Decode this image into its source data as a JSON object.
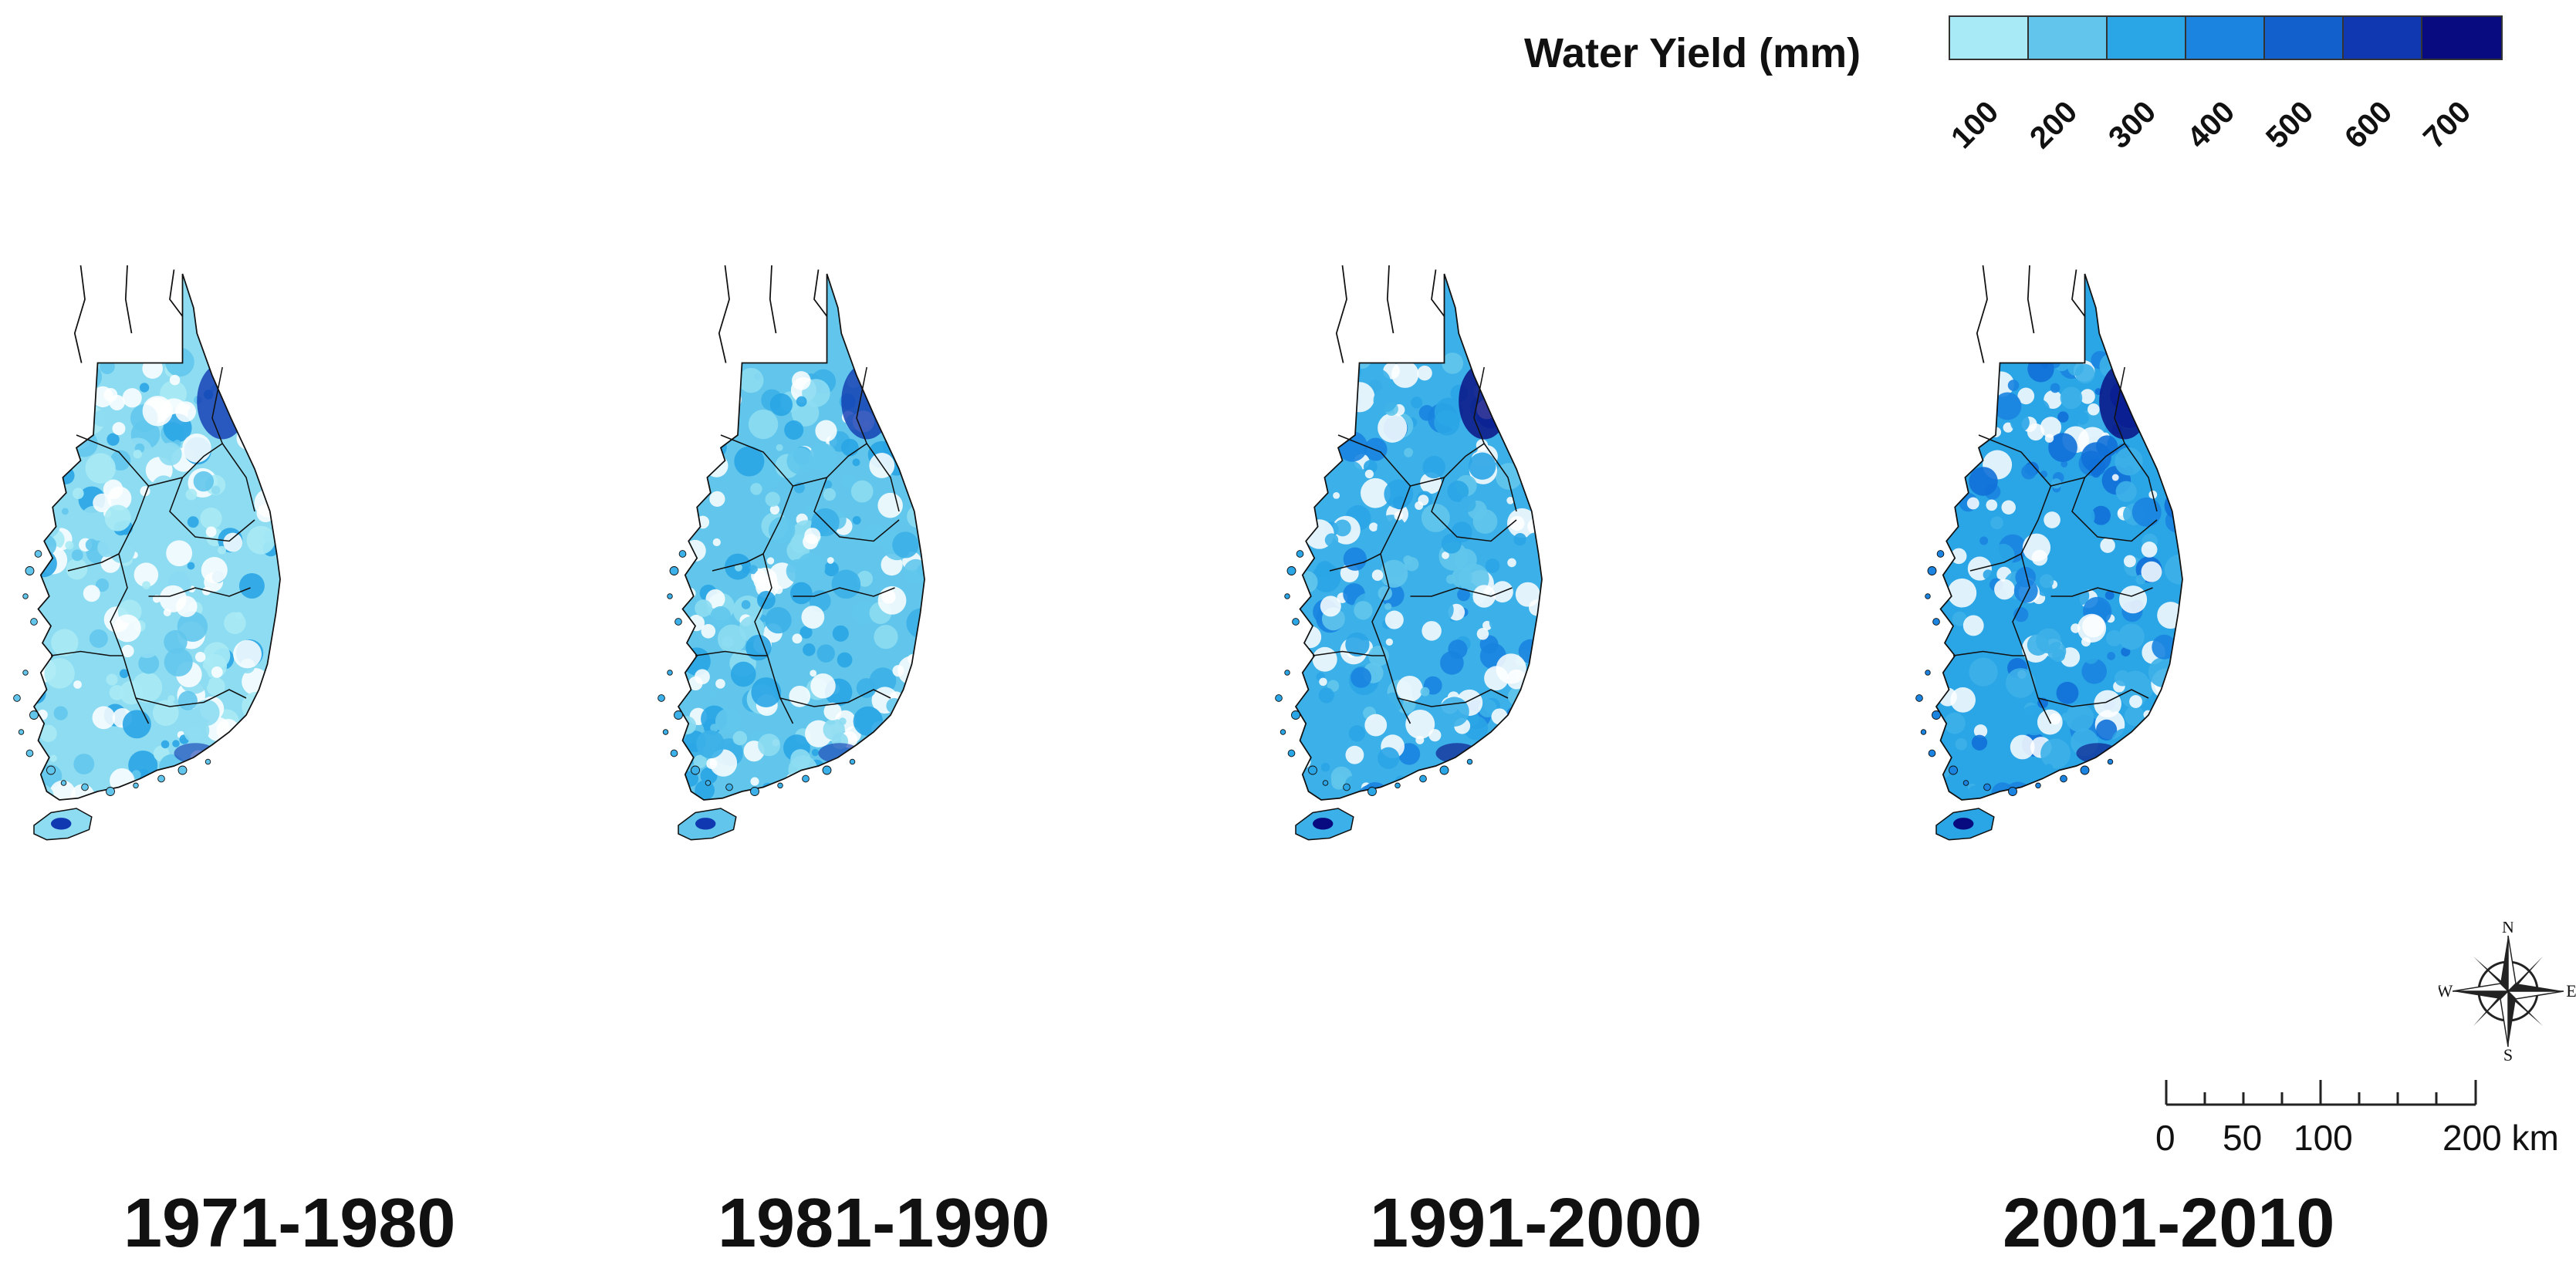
{
  "legend": {
    "title": "Water Yield (mm)",
    "ticks": [
      "100",
      "200",
      "300",
      "400",
      "500",
      "600",
      "700"
    ],
    "colors": [
      "#a8eaf5",
      "#62c6ec",
      "#2aa5e6",
      "#1a84e0",
      "#1160cc",
      "#1038b0",
      "#080a80"
    ]
  },
  "panels": [
    {
      "label": "1971-1980",
      "tone": [
        "#a8eaf5",
        "#8ddcf2",
        "#62c6ec",
        "#2aa5e6"
      ],
      "dark": "#1038b0"
    },
    {
      "label": "1981-1990",
      "tone": [
        "#8ddcf2",
        "#62c6ec",
        "#3cb0e8",
        "#2aa5e6"
      ],
      "dark": "#1038b0"
    },
    {
      "label": "1991-2000",
      "tone": [
        "#62c6ec",
        "#3cb0e8",
        "#2aa5e6",
        "#1a84e0"
      ],
      "dark": "#080a80"
    },
    {
      "label": "2001-2010",
      "tone": [
        "#3cb0e8",
        "#2aa5e6",
        "#1a84e0",
        "#1170d8"
      ],
      "dark": "#080a80"
    }
  ],
  "compass": {
    "n": "N",
    "s": "S",
    "e": "E",
    "w": "W"
  },
  "scale": {
    "labels": [
      "0",
      "50",
      "100",
      "200 km"
    ]
  }
}
